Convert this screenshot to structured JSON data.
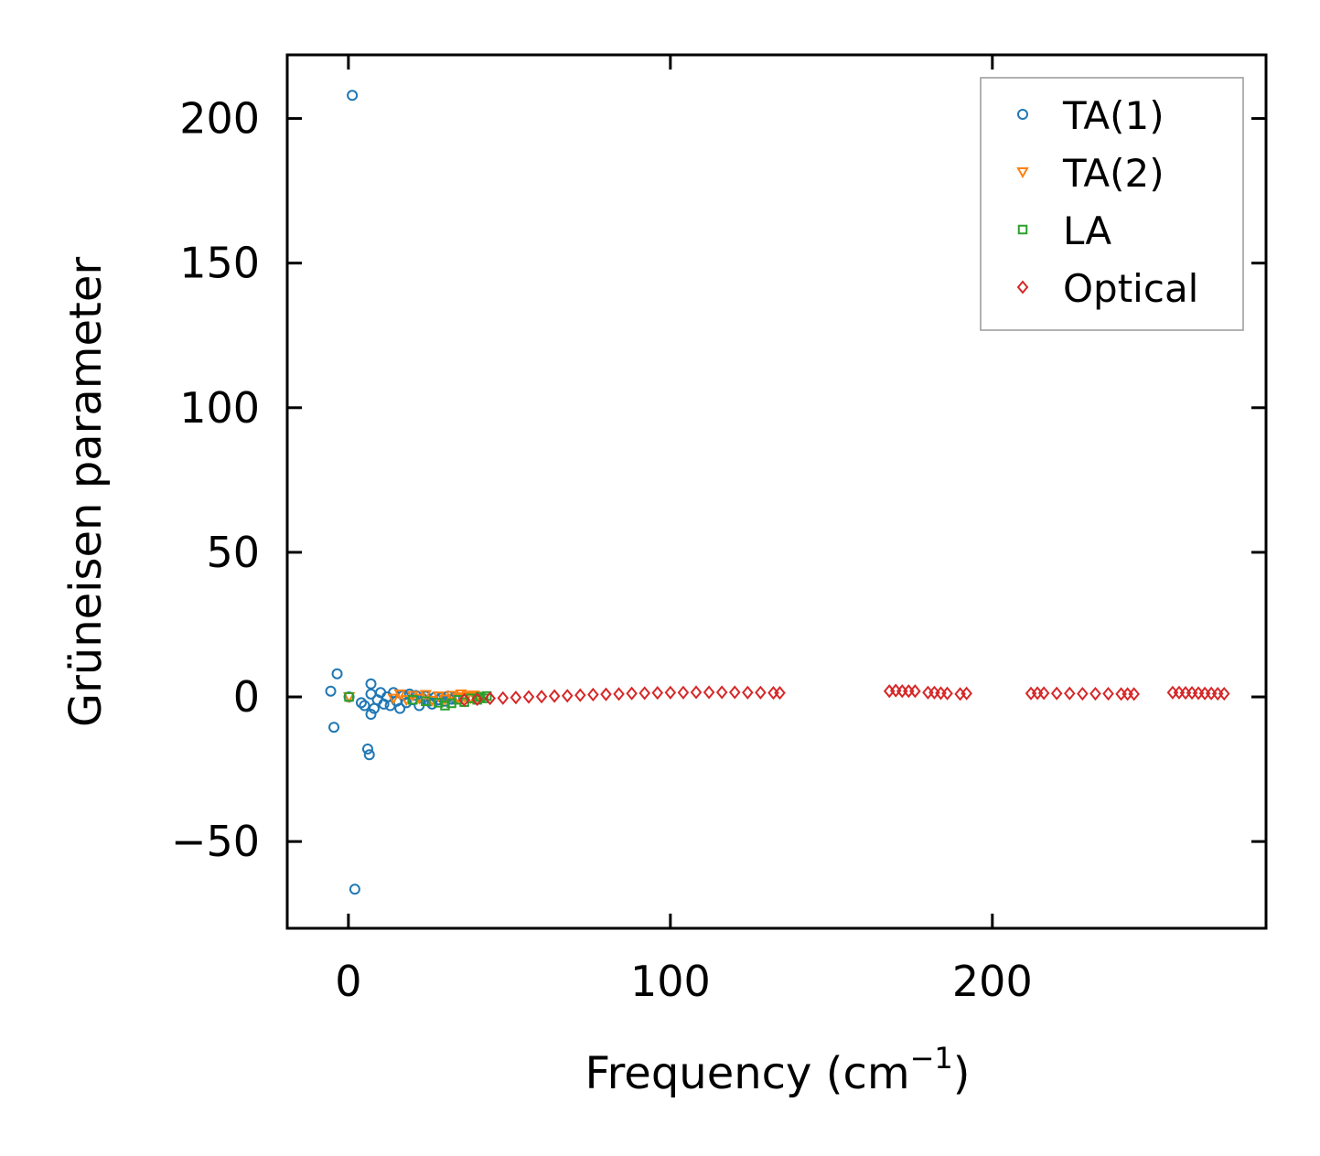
{
  "chart_data": {
    "type": "scatter",
    "title": "",
    "xlabel": "Frequency (cm",
    "xlabel_sup": "−1",
    "xlabel_close": ")",
    "ylabel": "Grüneisen parameter",
    "xlim": [
      -19,
      285
    ],
    "ylim": [
      -80,
      222
    ],
    "xticks": [
      0,
      100,
      200
    ],
    "xtick_labels": [
      "0",
      "100",
      "200"
    ],
    "yticks": [
      -50,
      0,
      50,
      100,
      150,
      200
    ],
    "ytick_labels": [
      "−50",
      "0",
      "50",
      "100",
      "150",
      "200"
    ],
    "grid": false,
    "legend_position": "top-right",
    "series": [
      {
        "name": "TA(1)",
        "marker": "circle",
        "color": "#1f77b4",
        "points": [
          [
            1.2,
            208
          ],
          [
            -5.5,
            2
          ],
          [
            -3.5,
            8
          ],
          [
            -4.5,
            -10.5
          ],
          [
            0.2,
            0
          ],
          [
            2,
            -66.5
          ],
          [
            4,
            -2
          ],
          [
            5,
            -3
          ],
          [
            6,
            -18
          ],
          [
            6.5,
            -20
          ],
          [
            7,
            -6
          ],
          [
            7,
            4.5
          ],
          [
            7,
            1
          ],
          [
            8,
            -4
          ],
          [
            9,
            -1
          ],
          [
            10,
            1.5
          ],
          [
            11,
            -2.5
          ],
          [
            12,
            0
          ],
          [
            13,
            -3
          ],
          [
            14,
            1.5
          ],
          [
            15,
            -1.5
          ],
          [
            16,
            -4
          ],
          [
            17,
            0.5
          ],
          [
            18,
            -2
          ],
          [
            19,
            1
          ],
          [
            20,
            -1
          ],
          [
            21,
            0.5
          ],
          [
            22,
            -3
          ],
          [
            23,
            -0.5
          ],
          [
            24,
            0.2
          ],
          [
            25,
            -1.5
          ],
          [
            26,
            -2.5
          ],
          [
            27,
            0
          ],
          [
            28,
            -1
          ],
          [
            29,
            -0.2
          ],
          [
            30,
            -1.5
          ],
          [
            31,
            0.3
          ],
          [
            32,
            -0.8
          ],
          [
            33,
            -0.4
          ]
        ]
      },
      {
        "name": "TA(2)",
        "marker": "triangle",
        "color": "#ff7f0e",
        "points": [
          [
            0.2,
            0
          ],
          [
            14,
            -0.5
          ],
          [
            16,
            1
          ],
          [
            18,
            -1
          ],
          [
            20,
            0.5
          ],
          [
            22,
            -0.5
          ],
          [
            24,
            0.8
          ],
          [
            26,
            -1.2
          ],
          [
            28,
            0.3
          ],
          [
            30,
            -0.8
          ],
          [
            32,
            0.5
          ],
          [
            34,
            -0.4
          ],
          [
            35,
            1
          ],
          [
            36,
            0
          ],
          [
            37,
            0.5
          ],
          [
            38,
            -0.3
          ],
          [
            39,
            0.6
          ],
          [
            40,
            0.2
          ]
        ]
      },
      {
        "name": "LA",
        "marker": "square",
        "color": "#2ca02c",
        "points": [
          [
            0.2,
            0
          ],
          [
            20,
            -1
          ],
          [
            24,
            -1.5
          ],
          [
            28,
            -2
          ],
          [
            30,
            -3
          ],
          [
            32,
            -2.2
          ],
          [
            34,
            -1
          ],
          [
            36,
            -1.8
          ],
          [
            38,
            -0.5
          ],
          [
            40,
            -1
          ],
          [
            41,
            0
          ],
          [
            42,
            -0.5
          ],
          [
            43,
            0.3
          ]
        ]
      },
      {
        "name": "Optical",
        "marker": "diamond",
        "color": "#d62728",
        "points": [
          [
            36,
            -1
          ],
          [
            40,
            -0.8
          ],
          [
            44,
            -0.5
          ],
          [
            48,
            -0.4
          ],
          [
            52,
            -0.2
          ],
          [
            56,
            0
          ],
          [
            60,
            0.1
          ],
          [
            64,
            0.3
          ],
          [
            68,
            0.4
          ],
          [
            72,
            0.6
          ],
          [
            76,
            0.8
          ],
          [
            80,
            0.9
          ],
          [
            84,
            1
          ],
          [
            88,
            1.2
          ],
          [
            92,
            1.3
          ],
          [
            96,
            1.4
          ],
          [
            100,
            1.5
          ],
          [
            104,
            1.5
          ],
          [
            108,
            1.6
          ],
          [
            112,
            1.6
          ],
          [
            116,
            1.6
          ],
          [
            120,
            1.6
          ],
          [
            124,
            1.5
          ],
          [
            128,
            1.5
          ],
          [
            132,
            1.4
          ],
          [
            134,
            1.4
          ],
          [
            168,
            2
          ],
          [
            170,
            2.2
          ],
          [
            172,
            2
          ],
          [
            174,
            2
          ],
          [
            176,
            2
          ],
          [
            180,
            1.5
          ],
          [
            182,
            1.5
          ],
          [
            184,
            1.3
          ],
          [
            186,
            1.2
          ],
          [
            190,
            1
          ],
          [
            192,
            1.2
          ],
          [
            212,
            1.2
          ],
          [
            214,
            1.3
          ],
          [
            216,
            1.3
          ],
          [
            220,
            1.2
          ],
          [
            224,
            1.2
          ],
          [
            228,
            1.1
          ],
          [
            232,
            1.1
          ],
          [
            236,
            1.1
          ],
          [
            240,
            1
          ],
          [
            242,
            1
          ],
          [
            244,
            1
          ],
          [
            256,
            1.5
          ],
          [
            258,
            1.5
          ],
          [
            260,
            1.4
          ],
          [
            262,
            1.4
          ],
          [
            264,
            1.3
          ],
          [
            266,
            1.2
          ],
          [
            268,
            1.2
          ],
          [
            270,
            1.1
          ],
          [
            272,
            1.1
          ]
        ]
      }
    ]
  }
}
